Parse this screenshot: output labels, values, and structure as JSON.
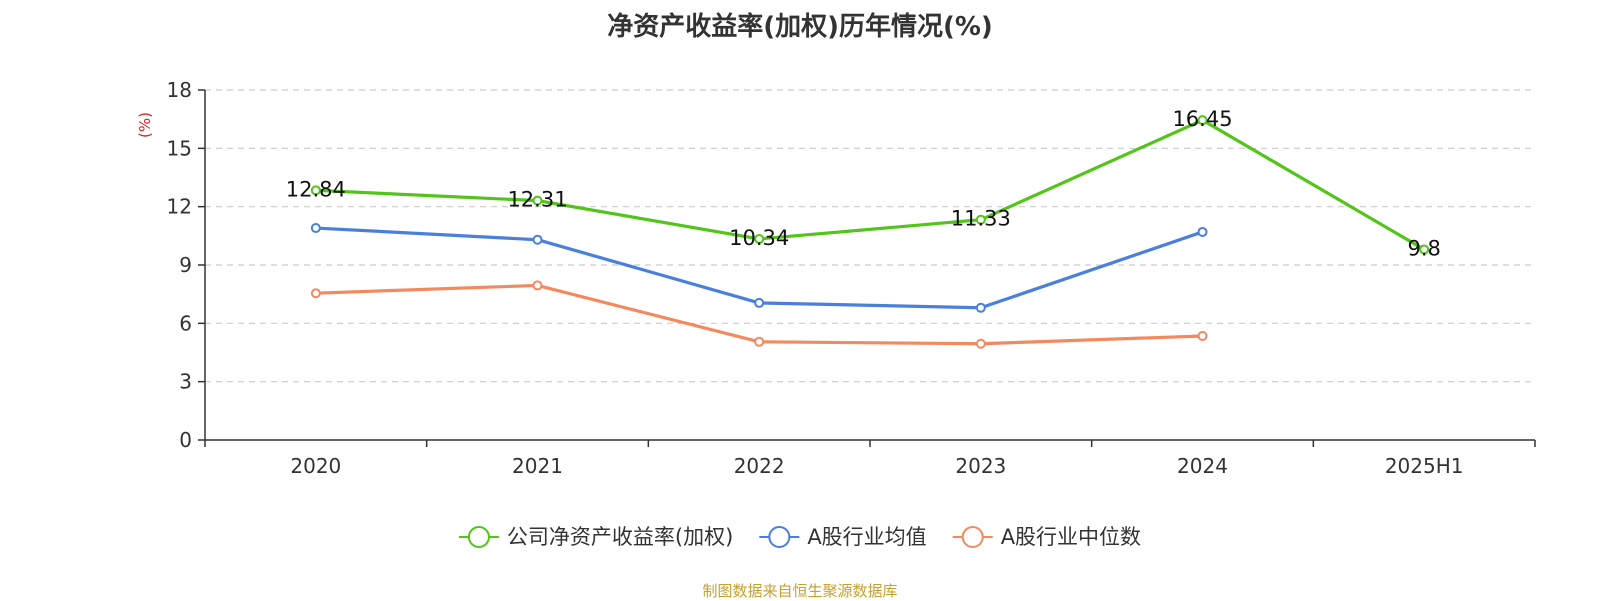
{
  "source": "制图数据来自恒生聚源数据库",
  "chart_data": {
    "type": "line",
    "title": "净资产收益率(加权)历年情况(%)",
    "ylabel": "(%)",
    "xlabel": "",
    "categories": [
      "2020",
      "2021",
      "2022",
      "2023",
      "2024",
      "2025H1"
    ],
    "ylim": [
      0,
      18
    ],
    "yticks": [
      0,
      3,
      6,
      9,
      12,
      15,
      18
    ],
    "grid": true,
    "legend_position": "bottom",
    "series": [
      {
        "name": "公司净资产收益率(加权)",
        "color": "#52c41a",
        "values": [
          12.84,
          12.31,
          10.34,
          11.33,
          16.45,
          9.8
        ],
        "labels": [
          "12.84",
          "12.31",
          "10.34",
          "11.33",
          "16.45",
          "9.8"
        ]
      },
      {
        "name": "A股行业均值",
        "color": "#4a7fdc",
        "values": [
          10.9,
          10.3,
          7.05,
          6.8,
          10.7,
          null
        ]
      },
      {
        "name": "A股行业中位数",
        "color": "#f4895f",
        "values": [
          7.55,
          7.95,
          5.05,
          4.95,
          5.35,
          null
        ]
      }
    ]
  }
}
